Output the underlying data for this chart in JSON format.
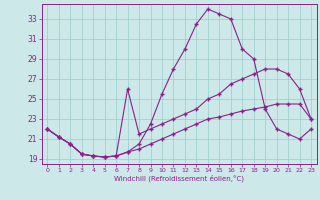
{
  "xlabel": "Windchill (Refroidissement éolien,°C)",
  "bg_color": "#cce8e8",
  "line_color": "#882288",
  "grid_color": "#99cccc",
  "xlim": [
    -0.5,
    23.5
  ],
  "ylim": [
    18.5,
    34.5
  ],
  "xticks": [
    0,
    1,
    2,
    3,
    4,
    5,
    6,
    7,
    8,
    9,
    10,
    11,
    12,
    13,
    14,
    15,
    16,
    17,
    18,
    19,
    20,
    21,
    22,
    23
  ],
  "yticks": [
    19,
    21,
    23,
    25,
    27,
    29,
    31,
    33
  ],
  "line_peak_x": [
    0,
    1,
    2,
    3,
    4,
    5,
    6,
    7,
    8,
    9,
    10,
    11,
    12,
    13,
    14,
    15,
    16,
    17,
    18,
    19,
    20,
    21,
    22,
    23
  ],
  "line_peak_y": [
    22,
    21.2,
    20.5,
    19.5,
    19.3,
    19.2,
    19.3,
    19.7,
    20.5,
    22.5,
    25.5,
    28,
    30,
    32.5,
    34,
    33.5,
    33,
    30,
    29,
    24,
    22,
    21.5,
    21,
    22
  ],
  "line_mid_x": [
    0,
    1,
    2,
    3,
    4,
    5,
    6,
    7,
    8,
    9,
    10,
    11,
    12,
    13,
    14,
    15,
    16,
    17,
    18,
    19,
    20,
    21,
    22,
    23
  ],
  "line_mid_y": [
    22,
    21.2,
    20.5,
    19.5,
    19.3,
    19.2,
    19.3,
    26,
    21.5,
    22,
    22.5,
    23,
    23.5,
    24,
    25,
    25.5,
    26.5,
    27,
    27.5,
    28,
    28,
    27.5,
    26,
    23
  ],
  "line_flat_x": [
    0,
    1,
    2,
    3,
    4,
    5,
    6,
    7,
    8,
    9,
    10,
    11,
    12,
    13,
    14,
    15,
    16,
    17,
    18,
    19,
    20,
    21,
    22,
    23
  ],
  "line_flat_y": [
    22,
    21.2,
    20.5,
    19.5,
    19.3,
    19.2,
    19.3,
    19.7,
    20.0,
    20.5,
    21,
    21.5,
    22,
    22.5,
    23,
    23.2,
    23.5,
    23.8,
    24,
    24.2,
    24.5,
    24.5,
    24.5,
    23
  ]
}
